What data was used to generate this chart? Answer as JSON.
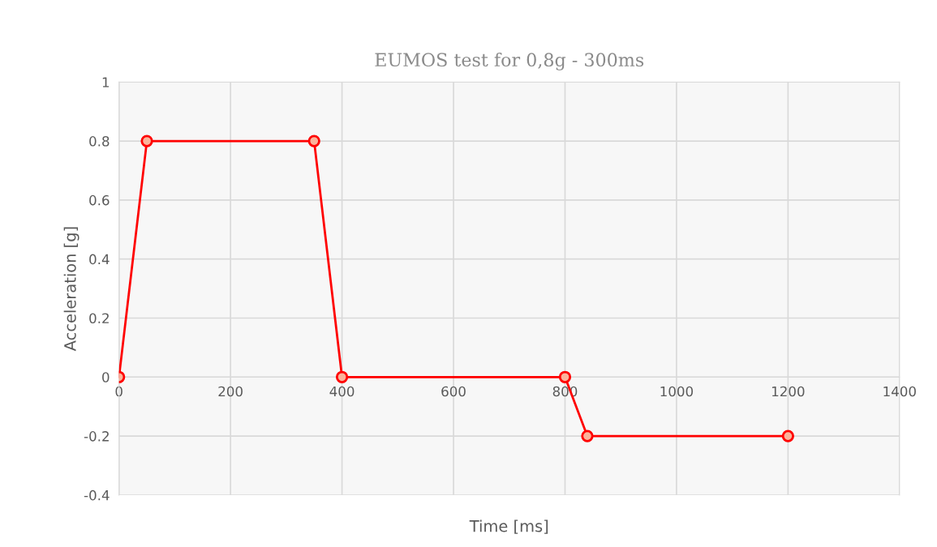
{
  "chart_data": {
    "type": "line",
    "title": "EUMOS test for 0,8g - 300ms",
    "xlabel": "Time [ms]",
    "ylabel": "Acceleration [g]",
    "x": [
      0,
      50,
      350,
      400,
      800,
      840,
      1200
    ],
    "series": [
      {
        "color": "#ff0000",
        "values": [
          0,
          0.8,
          0.8,
          0,
          0,
          -0.2,
          -0.2
        ]
      }
    ],
    "xlim": [
      0,
      1400
    ],
    "xticks": [
      0,
      200,
      400,
      600,
      800,
      1000,
      1200,
      1400
    ],
    "ylim": [
      -0.4,
      1
    ],
    "yticks": [
      -0.4,
      -0.2,
      0,
      0.2,
      0.4,
      0.6,
      0.8,
      1
    ],
    "grid": true,
    "marker": "circle",
    "line_style": "solid",
    "legend": false
  }
}
